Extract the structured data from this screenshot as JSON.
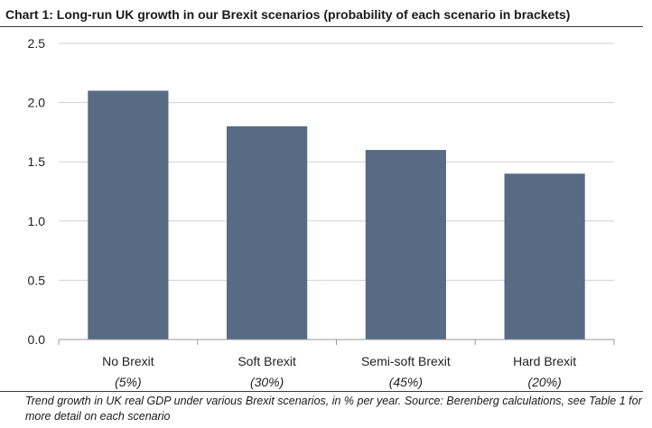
{
  "chart_data": {
    "type": "bar",
    "title": "Chart 1: Long-run UK growth in our Brexit scenarios (probability of each scenario in brackets)",
    "categories": [
      "No Brexit",
      "Soft Brexit",
      "Semi-soft Brexit",
      "Hard Brexit"
    ],
    "category_sublabels": [
      "(5%)",
      "(30%)",
      "(45%)",
      "(20%)"
    ],
    "values": [
      2.1,
      1.8,
      1.6,
      1.4
    ],
    "ylim": [
      0,
      2.5
    ],
    "yticks": [
      0.0,
      0.5,
      1.0,
      1.5,
      2.0,
      2.5
    ],
    "ytick_labels": [
      "0.0",
      "0.5",
      "1.0",
      "1.5",
      "2.0",
      "2.5"
    ],
    "grid": true,
    "bar_color": "#586a84",
    "grid_color": "#d0d0d0",
    "caption": "Trend growth in UK real GDP under various Brexit scenarios, in % per year. Source: Berenberg calculations, see Table 1 for more detail on each scenario"
  }
}
